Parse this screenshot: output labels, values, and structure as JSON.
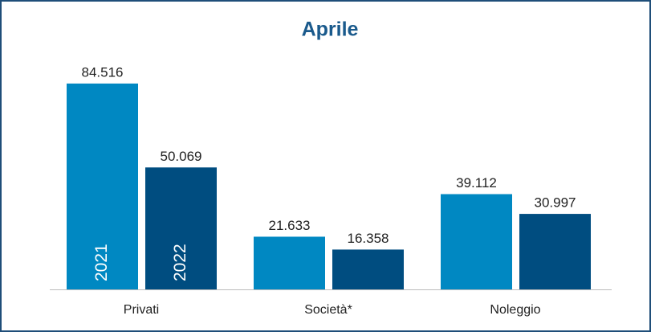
{
  "chart_data": {
    "type": "bar",
    "title": "Aprile",
    "categories": [
      "Privati",
      "Società*",
      "Noleggio"
    ],
    "series": [
      {
        "name": "2021",
        "color": "#0088c2",
        "values": [
          84516,
          21633,
          39112
        ],
        "value_labels": [
          "84.516",
          "21.633",
          "39.112"
        ]
      },
      {
        "name": "2022",
        "color": "#004d80",
        "values": [
          50069,
          16358,
          30997
        ],
        "value_labels": [
          "50.069",
          "16.358",
          "30.997"
        ]
      }
    ],
    "ylim": [
      0,
      100000
    ]
  }
}
